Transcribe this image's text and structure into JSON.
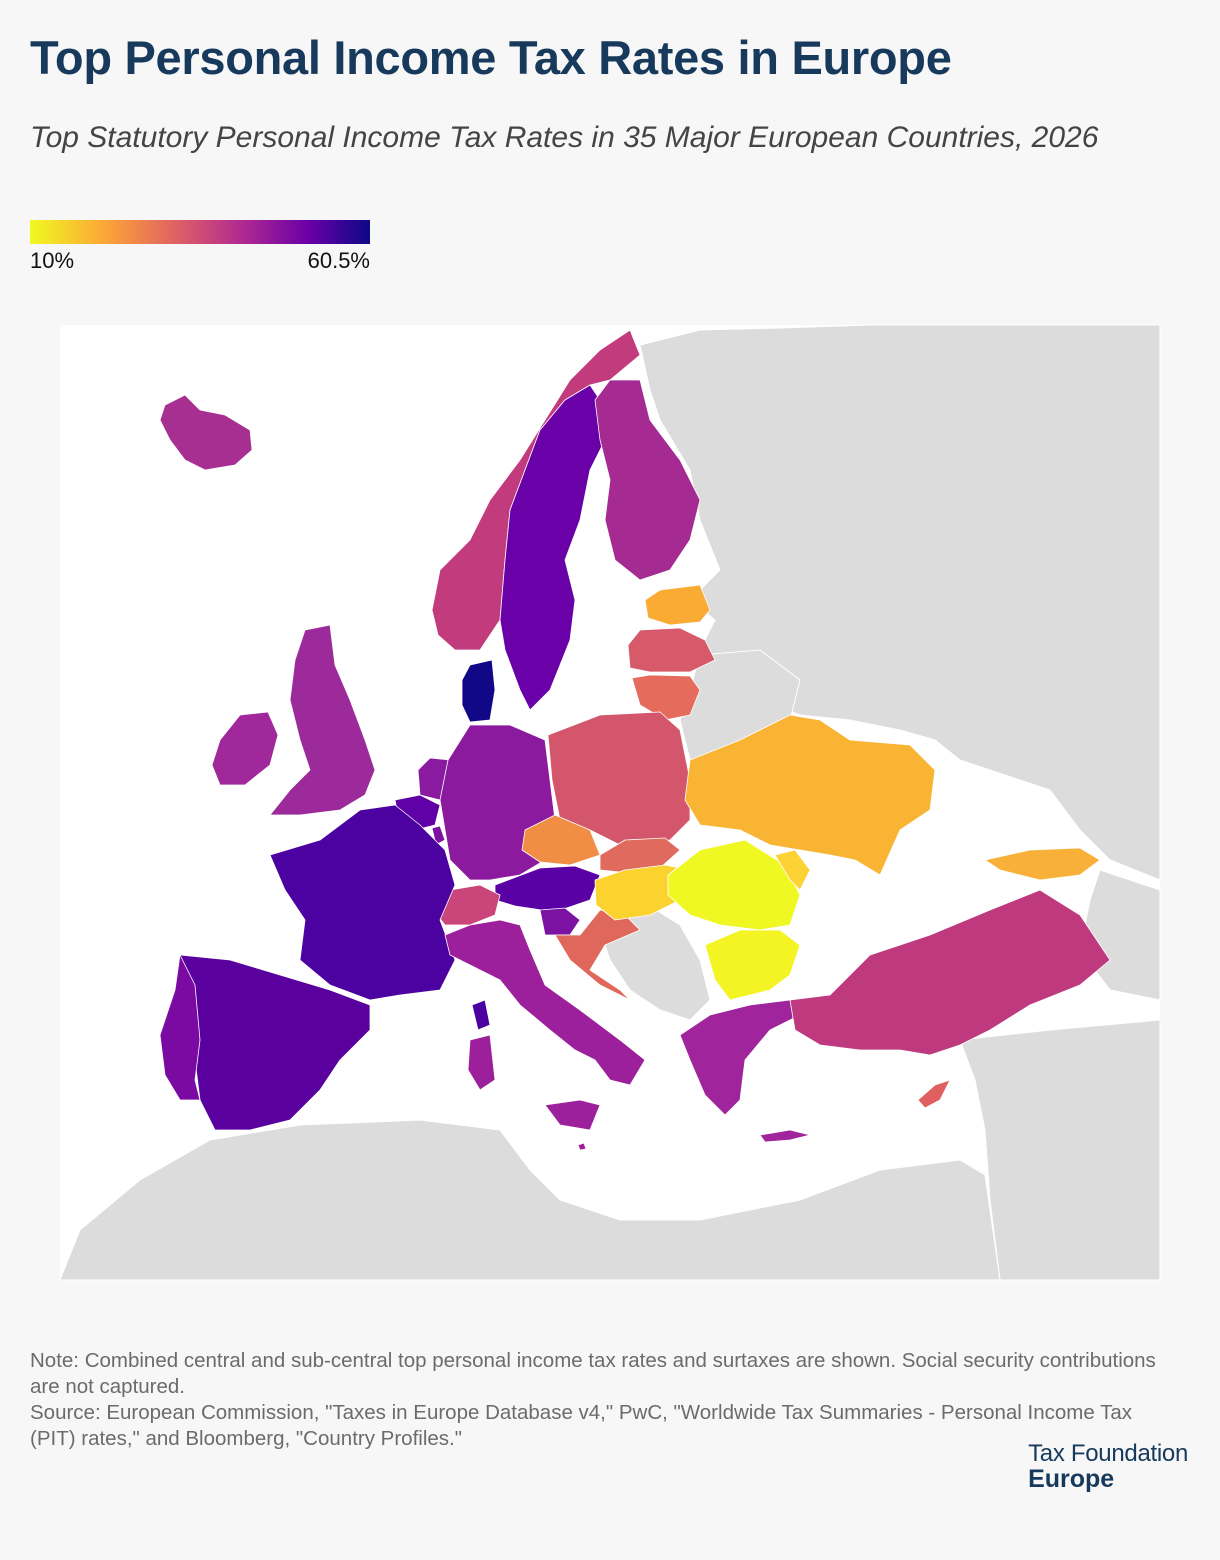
{
  "title": "Top Personal Income Tax Rates in Europe",
  "subtitle": "Top Statutory Personal Income Tax Rates in 35 Major European Countries, 2026",
  "legend": {
    "min_label": "10%",
    "max_label": "60.5%",
    "scale": [
      "#f0f921",
      "#fca636",
      "#e16462",
      "#b12a90",
      "#6a00a8",
      "#0d0887"
    ]
  },
  "note": "Note: Combined central and sub-central top personal income tax rates and surtaxes are shown. Social security contributions are not captured.",
  "source": "Source: European Commission, \"Taxes in Europe Database v4,\" PwC, \"Worldwide Tax Summaries - Personal Income Tax (PIT) rates,\" and Bloomberg, \"Country Profiles.\"",
  "brand": {
    "line1": "Tax Foundation",
    "line2": "Europe"
  },
  "colors": {
    "background": "#f7f7f7",
    "land_no_data": "#dcdcdc",
    "sea": "#ffffff",
    "title": "#173a5c"
  },
  "chart_data": {
    "type": "choropleth",
    "region": "Europe",
    "colorscale_range": [
      10,
      60.5
    ],
    "countries": [
      {
        "name": "Iceland",
        "color": "#a72f92"
      },
      {
        "name": "Norway",
        "color": "#c13b7d"
      },
      {
        "name": "Sweden",
        "color": "#6a00a8"
      },
      {
        "name": "Finland",
        "color": "#a52a92"
      },
      {
        "name": "Denmark",
        "color": "#100886"
      },
      {
        "name": "Estonia",
        "color": "#f9ab34"
      },
      {
        "name": "Latvia",
        "color": "#d75a6b"
      },
      {
        "name": "Lithuania",
        "color": "#e56b5d"
      },
      {
        "name": "Ireland",
        "color": "#a1289a"
      },
      {
        "name": "United Kingdom",
        "color": "#9c2a9a"
      },
      {
        "name": "Netherlands",
        "color": "#8a1aa0"
      },
      {
        "name": "Belgium",
        "color": "#5f01a6"
      },
      {
        "name": "Luxembourg",
        "color": "#7d12a0"
      },
      {
        "name": "Germany",
        "color": "#8c1a9e"
      },
      {
        "name": "Poland",
        "color": "#d3566c"
      },
      {
        "name": "Czechia",
        "color": "#f28d45"
      },
      {
        "name": "Slovakia",
        "color": "#e16a5f"
      },
      {
        "name": "Austria",
        "color": "#5a01a6"
      },
      {
        "name": "Switzerland",
        "color": "#c9457a"
      },
      {
        "name": "France",
        "color": "#4c02a0"
      },
      {
        "name": "Spain",
        "color": "#59009f"
      },
      {
        "name": "Portugal",
        "color": "#7b0aa3"
      },
      {
        "name": "Italy",
        "color": "#9c209b"
      },
      {
        "name": "Slovenia",
        "color": "#7c12a1"
      },
      {
        "name": "Croatia",
        "color": "#e0675c"
      },
      {
        "name": "Hungary",
        "color": "#fcd22f"
      },
      {
        "name": "Romania",
        "color": "#eff822"
      },
      {
        "name": "Bulgaria",
        "color": "#f4f424"
      },
      {
        "name": "Greece",
        "color": "#a0249b"
      },
      {
        "name": "Cyprus",
        "color": "#e0605f"
      },
      {
        "name": "Turkey",
        "color": "#bf397f"
      },
      {
        "name": "Ukraine",
        "color": "#fab434"
      },
      {
        "name": "Moldova",
        "color": "#fcd234"
      },
      {
        "name": "Georgia",
        "color": "#f9b038"
      },
      {
        "name": "Malta",
        "color": "#9c209b"
      }
    ]
  }
}
